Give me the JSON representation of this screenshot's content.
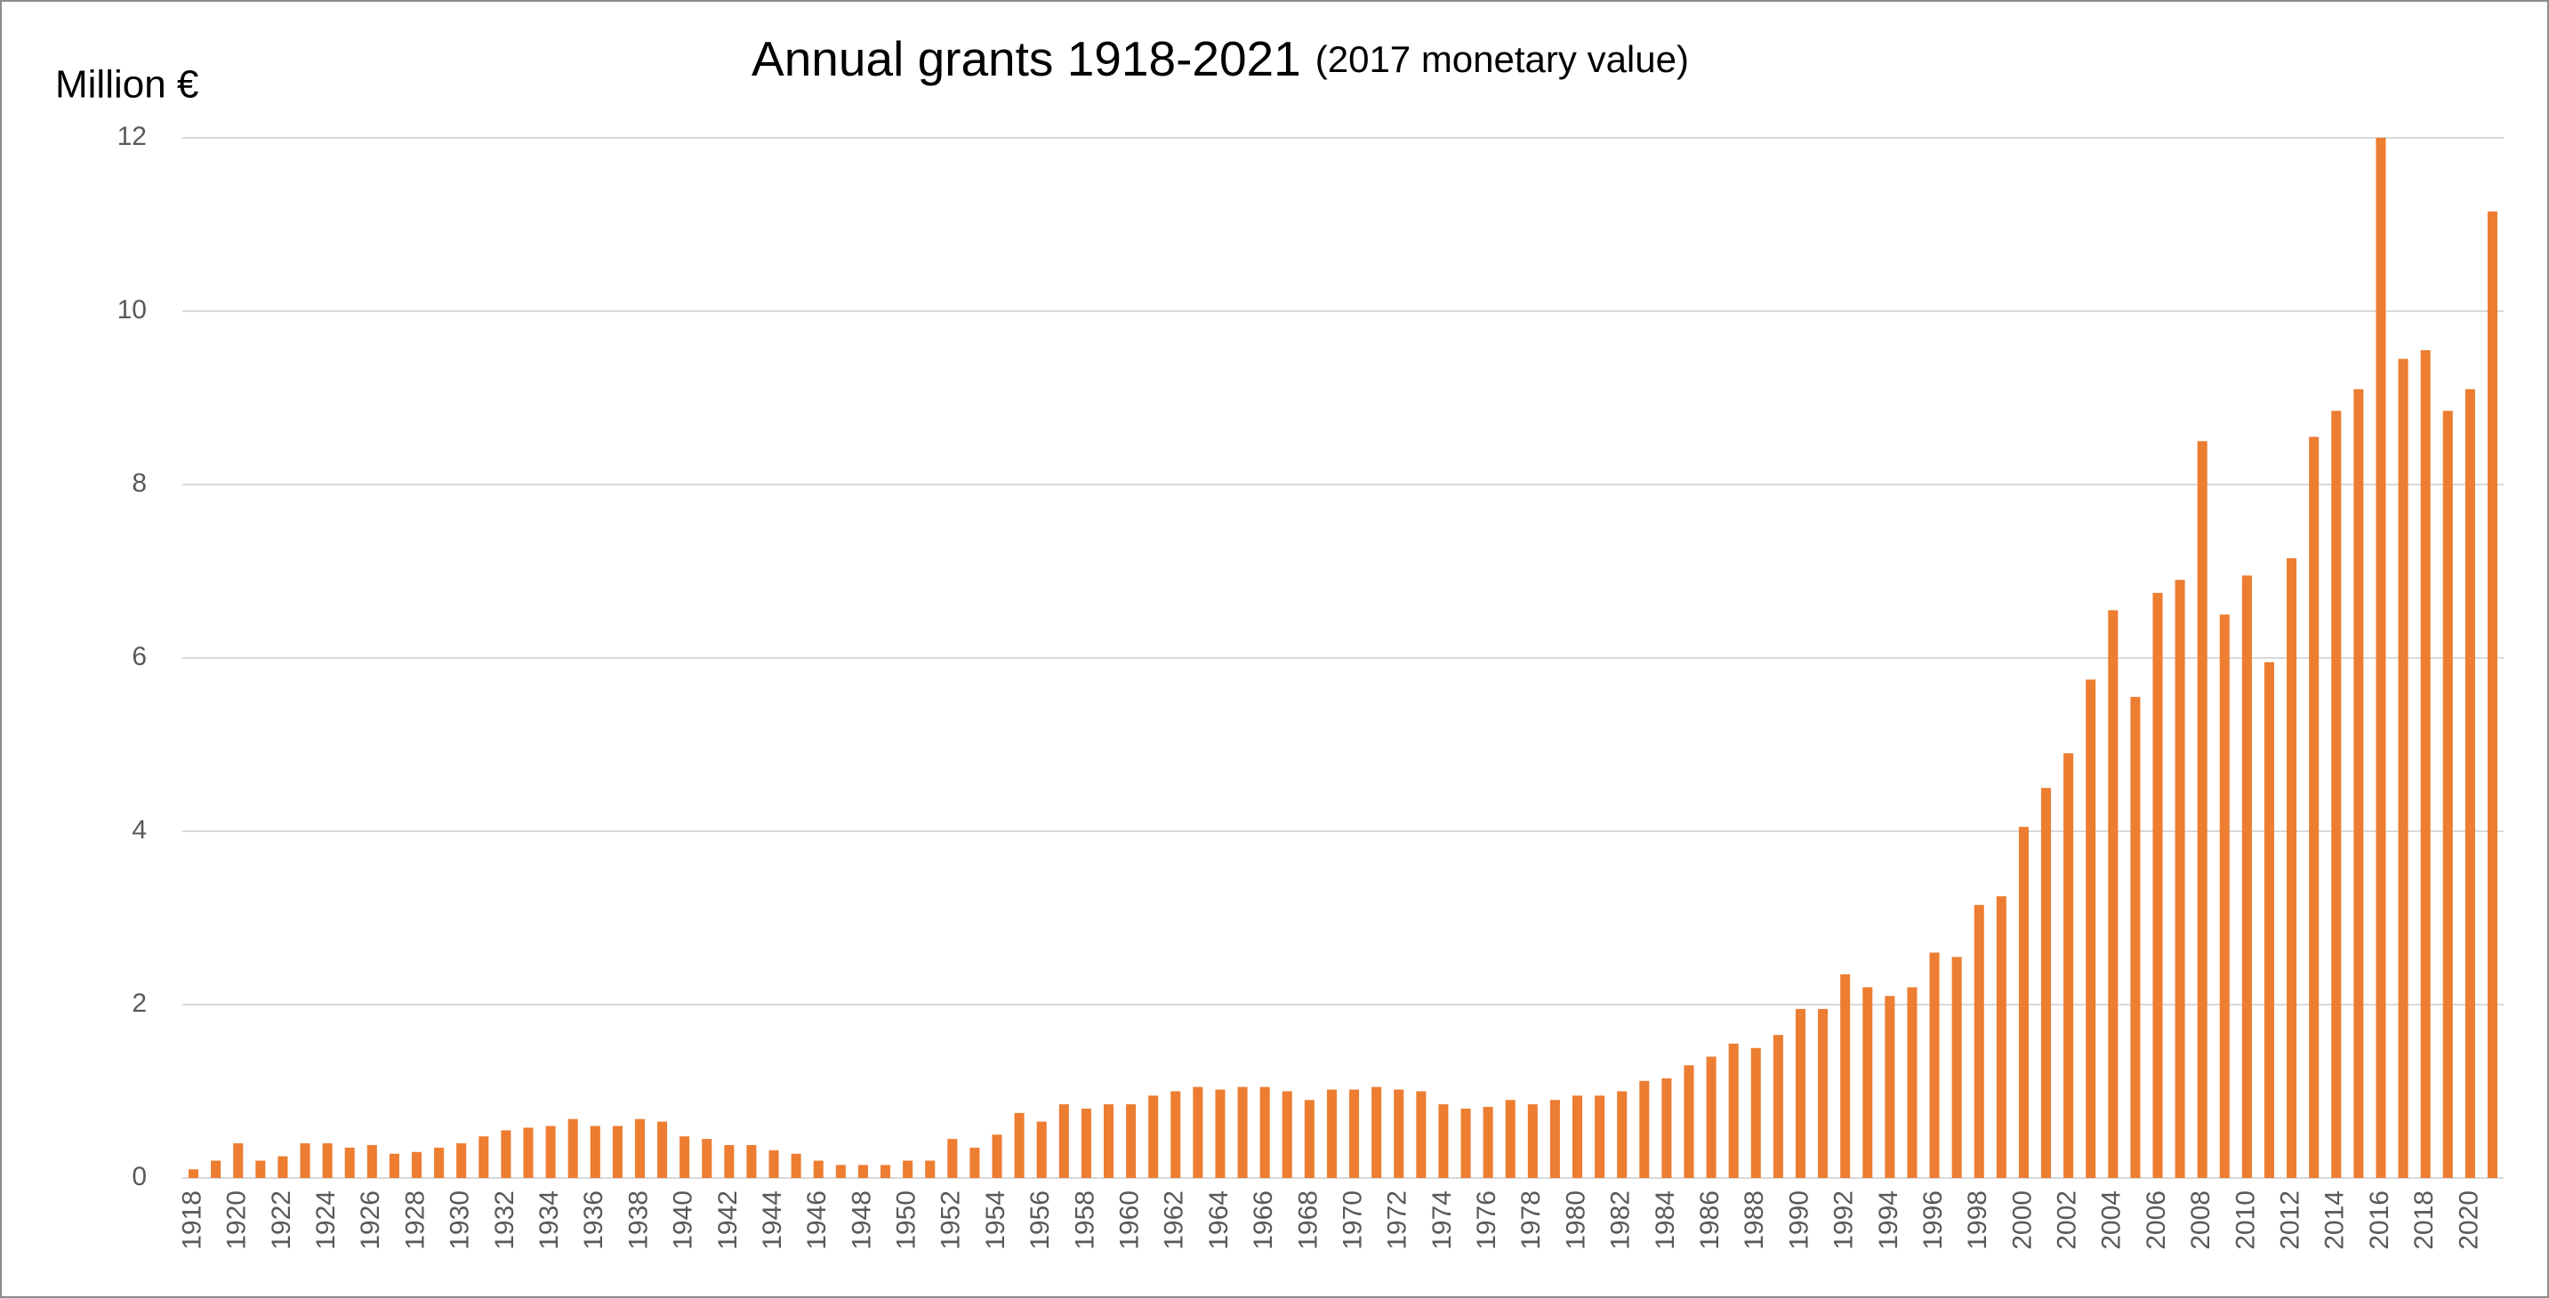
{
  "chart_data": {
    "type": "bar",
    "title": "Annual grants 1918-2021",
    "subtitle": "(2017 monetary value)",
    "y_label": "Million €",
    "color": "#ed7d31",
    "grid": true,
    "ylim": [
      0,
      12
    ],
    "yticks": [
      0,
      2,
      4,
      6,
      8,
      10,
      12
    ],
    "categories": [
      "1918",
      null,
      "1920",
      null,
      "1922",
      null,
      "1924",
      null,
      "1926",
      null,
      "1928",
      null,
      "1930",
      null,
      "1932",
      null,
      "1934",
      null,
      "1936",
      null,
      "1938",
      null,
      "1940",
      null,
      "1942",
      null,
      "1944",
      null,
      "1946",
      null,
      "1948",
      null,
      "1950",
      null,
      "1952",
      null,
      "1954",
      null,
      "1956",
      null,
      "1958",
      null,
      "1960",
      null,
      "1962",
      null,
      "1964",
      null,
      "1966",
      null,
      "1968",
      null,
      "1970",
      null,
      "1972",
      null,
      "1974",
      null,
      "1976",
      null,
      "1978",
      null,
      "1980",
      null,
      "1982",
      null,
      "1984",
      null,
      "1986",
      null,
      "1988",
      null,
      "1990",
      null,
      "1992",
      null,
      "1994",
      null,
      "1996",
      null,
      "1998",
      null,
      "2000",
      null,
      "2002",
      null,
      "2004",
      null,
      "2006",
      null,
      "2008",
      null,
      "2010",
      null,
      "2012",
      null,
      "2014",
      null,
      "2016",
      null,
      "2018",
      null,
      "2020",
      null
    ],
    "values": [
      0.1,
      0.2,
      0.4,
      0.2,
      0.25,
      0.4,
      0.4,
      0.35,
      0.38,
      0.28,
      0.3,
      0.35,
      0.4,
      0.48,
      0.55,
      0.58,
      0.6,
      0.68,
      0.6,
      0.6,
      0.68,
      0.65,
      0.48,
      0.45,
      0.38,
      0.38,
      0.32,
      0.28,
      0.2,
      0.15,
      0.15,
      0.15,
      0.2,
      0.2,
      0.45,
      0.35,
      0.5,
      0.75,
      0.65,
      0.85,
      0.8,
      0.85,
      0.85,
      0.95,
      1.0,
      1.05,
      1.02,
      1.05,
      1.05,
      1.0,
      0.9,
      1.02,
      1.02,
      1.05,
      1.02,
      1.0,
      0.85,
      0.8,
      0.82,
      0.9,
      0.85,
      0.9,
      0.95,
      0.95,
      1.0,
      1.12,
      1.15,
      1.3,
      1.4,
      1.55,
      1.5,
      1.65,
      1.95,
      1.95,
      2.35,
      2.2,
      2.1,
      2.2,
      2.6,
      2.55,
      3.15,
      3.25,
      4.05,
      4.5,
      4.9,
      5.75,
      6.55,
      5.55,
      6.75,
      6.9,
      8.5,
      6.5,
      6.95,
      5.95,
      7.15,
      8.55,
      8.85,
      9.1,
      12.0,
      9.45,
      9.55,
      8.85,
      9.1,
      11.15
    ]
  }
}
